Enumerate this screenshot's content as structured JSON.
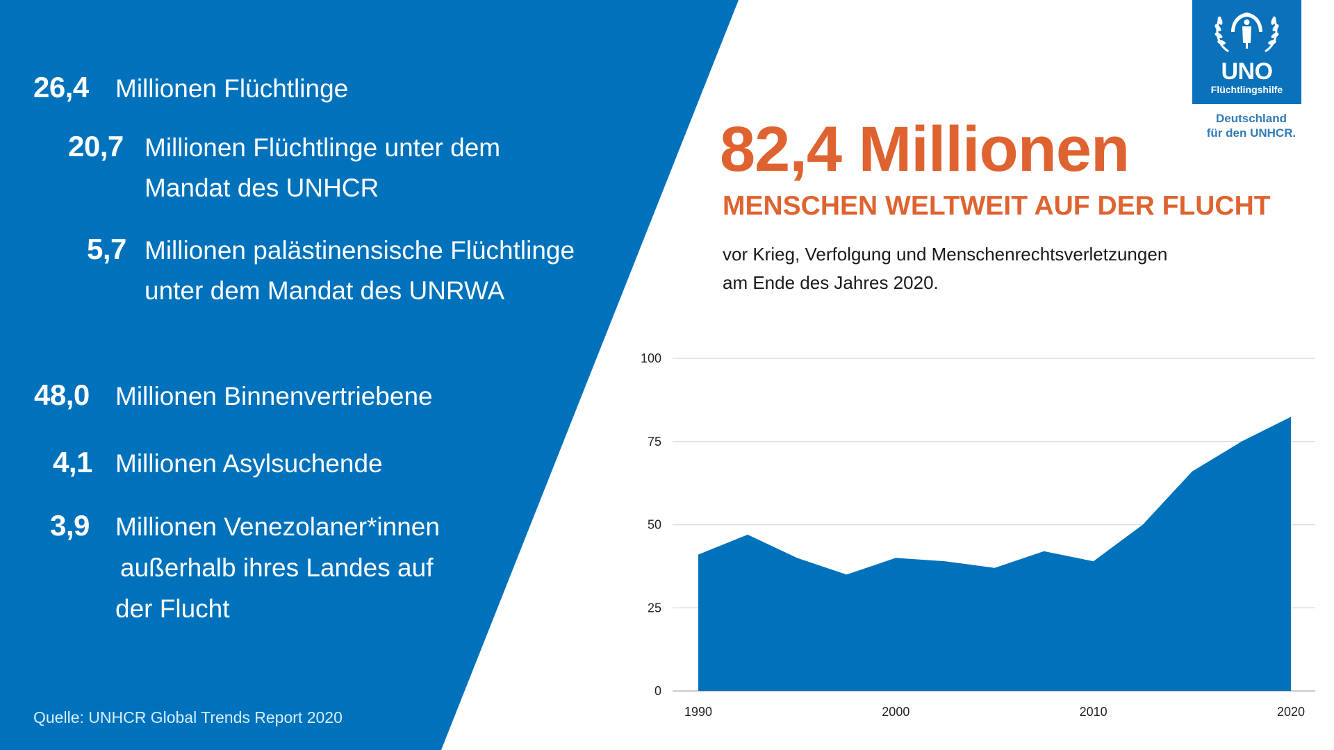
{
  "colors": {
    "panel_blue": "#0072bc",
    "accent_orange": "#df6330",
    "area_blue": "#0071bb",
    "source_text": "#d4efff",
    "logo_tagline": "#2f7bb8"
  },
  "left_panel": {
    "refugees": {
      "number": "26,4",
      "label": "Millionen Flüchtlinge",
      "sub_items": [
        {
          "number": "20,7",
          "lines": [
            "Millionen Flüchtlinge unter dem",
            "Mandat des UNHCR"
          ]
        },
        {
          "number": "5,7",
          "lines": [
            "Millionen palästinensische Flüchtlinge",
            "unter dem Mandat des UNRWA"
          ]
        }
      ]
    },
    "idps": {
      "number": "48,0",
      "label": "Millionen Binnenvertriebene"
    },
    "asylum": {
      "number": "4,1",
      "label": "Millionen Asylsuchende"
    },
    "venezuelans": {
      "number": "3,9",
      "lines": [
        "Millionen Venezolaner*innen",
        "außerhalb ihres Landes auf",
        "der Flucht"
      ]
    },
    "source": "Quelle: UNHCR Global Trends Report 2020"
  },
  "headline": {
    "big": "82,4 Millionen",
    "sub": "MENSCHEN WELTWEIT AUF DER FLUCHT",
    "description": [
      "vor Krieg, Verfolgung und Menschenrechtsverletzungen",
      "am Ende des Jahres 2020."
    ]
  },
  "logo": {
    "icon": "unhcr-emblem-icon",
    "title": "UNO",
    "subtitle": "Flüchtlingshilfe",
    "tagline": [
      "Deutschland",
      "für den UNHCR."
    ]
  },
  "chart_data": {
    "type": "area",
    "title": "",
    "xlabel": "",
    "ylabel": "",
    "x": [
      1990,
      1992.5,
      1995,
      1997.5,
      2000,
      2002.5,
      2005,
      2007.5,
      2010,
      2012.5,
      2015,
      2017.5,
      2020
    ],
    "series": [
      {
        "name": "Menschen auf der Flucht (Millionen)",
        "values": [
          41,
          47,
          40,
          35,
          40,
          39,
          37,
          42,
          39,
          50,
          66,
          75,
          82.4
        ]
      }
    ],
    "xlim": [
      1990,
      2020
    ],
    "ylim": [
      0,
      100
    ],
    "xticks": [
      "1990",
      "2000",
      "2010",
      "2020"
    ],
    "xtick_values": [
      1990,
      2000,
      2010,
      2020
    ],
    "yticks": [
      "0",
      "25",
      "50",
      "75",
      "100"
    ],
    "ytick_values": [
      0,
      25,
      50,
      75,
      100
    ],
    "grid": true,
    "legend": "none"
  }
}
